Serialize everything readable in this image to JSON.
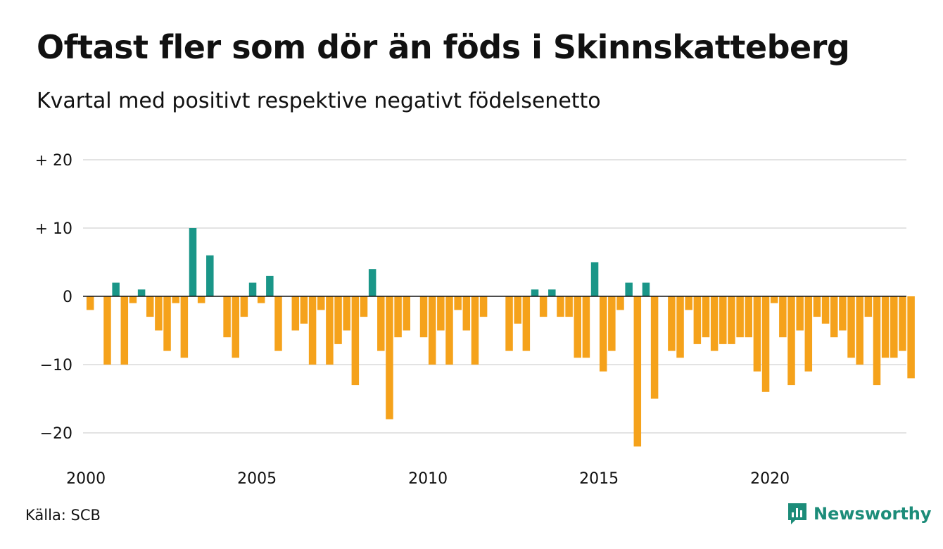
{
  "title": "Oftast fler som dör än föds i Skinnskatteberg",
  "subtitle": "Kvartal med positivt respektive negativt födelsenetto",
  "source": "Källa: SCB",
  "brand": {
    "name": "Newsworthy",
    "icon": "newsworthy-logo-icon"
  },
  "colors": {
    "positive": "#1a9688",
    "negative": "#f5a21b",
    "gridline": "#e3e3e3",
    "zeroline": "#111111"
  },
  "chart_data": {
    "type": "bar",
    "title": "Oftast fler som dör än föds i Skinnskatteberg",
    "subtitle": "Kvartal med positivt respektive negativt födelsenetto",
    "xlabel": "",
    "ylabel": "",
    "x_ticks": [
      "2000",
      "2005",
      "2010",
      "2015",
      "2020"
    ],
    "y_ticks": [
      {
        "value": 20,
        "label": "+ 20"
      },
      {
        "value": 10,
        "label": "+ 10"
      },
      {
        "value": 0,
        "label": "0"
      },
      {
        "value": -10,
        "label": "−10"
      },
      {
        "value": -20,
        "label": "−20"
      }
    ],
    "ylim": [
      -24,
      20
    ],
    "grid": true,
    "series": [
      {
        "categories": [
          "2000 Q1",
          "2000 Q2",
          "2000 Q3",
          "2000 Q4",
          "2001 Q1",
          "2001 Q2",
          "2001 Q3",
          "2001 Q4",
          "2002 Q1",
          "2002 Q2",
          "2002 Q3",
          "2002 Q4",
          "2003 Q1",
          "2003 Q2",
          "2003 Q3",
          "2003 Q4",
          "2004 Q1",
          "2004 Q2",
          "2004 Q3",
          "2004 Q4",
          "2005 Q1",
          "2005 Q2",
          "2005 Q3",
          "2005 Q4",
          "2006 Q1",
          "2006 Q2",
          "2006 Q3",
          "2006 Q4",
          "2007 Q1",
          "2007 Q2",
          "2007 Q3",
          "2007 Q4",
          "2008 Q1",
          "2008 Q2",
          "2008 Q3",
          "2008 Q4",
          "2009 Q1",
          "2009 Q2",
          "2009 Q3",
          "2009 Q4",
          "2010 Q1",
          "2010 Q2",
          "2010 Q3",
          "2010 Q4",
          "2011 Q1",
          "2011 Q2",
          "2011 Q3",
          "2011 Q4",
          "2012 Q1",
          "2012 Q2",
          "2012 Q3",
          "2012 Q4",
          "2013 Q1",
          "2013 Q2",
          "2013 Q3",
          "2013 Q4",
          "2014 Q1",
          "2014 Q2",
          "2014 Q3",
          "2014 Q4",
          "2015 Q1",
          "2015 Q2",
          "2015 Q3",
          "2015 Q4",
          "2016 Q1",
          "2016 Q2",
          "2016 Q3",
          "2016 Q4",
          "2017 Q1",
          "2017 Q2",
          "2017 Q3",
          "2017 Q4",
          "2018 Q1",
          "2018 Q2",
          "2018 Q3",
          "2018 Q4",
          "2019 Q1",
          "2019 Q2",
          "2019 Q3",
          "2019 Q4",
          "2020 Q1",
          "2020 Q2",
          "2020 Q3",
          "2020 Q4",
          "2021 Q1",
          "2021 Q2",
          "2021 Q3",
          "2021 Q4",
          "2022 Q1",
          "2022 Q2",
          "2022 Q3",
          "2022 Q4",
          "2023 Q1",
          "2023 Q2",
          "2023 Q3",
          "2023 Q4",
          "2024 Q1"
        ],
        "values": [
          -2,
          0,
          -10,
          2,
          -10,
          -1,
          1,
          -3,
          -5,
          -8,
          -1,
          -9,
          10,
          -1,
          6,
          0,
          -6,
          -9,
          -3,
          2,
          -1,
          3,
          -8,
          0,
          -5,
          -4,
          -10,
          -2,
          -10,
          -7,
          -5,
          -13,
          -3,
          4,
          -8,
          -18,
          -6,
          -5,
          0,
          -6,
          -10,
          -5,
          -10,
          -2,
          -5,
          -10,
          -3,
          0,
          0,
          -8,
          -4,
          -8,
          1,
          -3,
          1,
          -3,
          -3,
          -9,
          -9,
          5,
          -11,
          -8,
          -2,
          2,
          -22,
          2,
          -15,
          0,
          -8,
          -9,
          -2,
          -7,
          -6,
          -8,
          -7,
          -7,
          -6,
          -6,
          -11,
          -14,
          -1,
          -6,
          -13,
          -5,
          -11,
          -3,
          -4,
          -6,
          -5,
          -9,
          -10,
          -3,
          -13,
          -9,
          -9,
          -8,
          -12
        ]
      }
    ]
  }
}
